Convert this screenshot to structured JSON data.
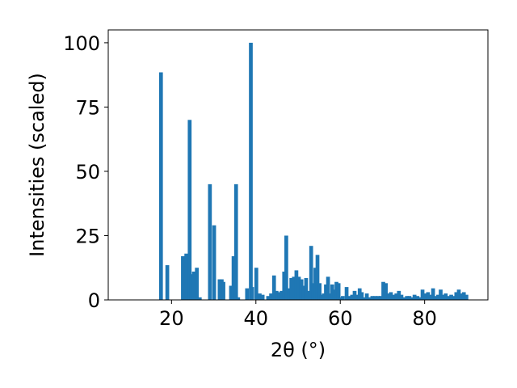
{
  "chart_data": {
    "type": "bar",
    "xlabel": "2θ (°)",
    "ylabel": "Intensities (scaled)",
    "xlim": [
      5,
      95
    ],
    "ylim": [
      0,
      105
    ],
    "xticks": [
      20,
      40,
      60,
      80
    ],
    "yticks": [
      0,
      25,
      50,
      75,
      100
    ],
    "bar_color": "#1f77b4",
    "grid": false,
    "legend": "none",
    "bar_width": 0.9,
    "x": [
      17.5,
      19.0,
      22.7,
      23.5,
      24.3,
      24.7,
      25.3,
      26.0,
      26.7,
      29.1,
      30.1,
      31.4,
      31.9,
      32.3,
      34.1,
      34.7,
      35.3,
      35.8,
      37.9,
      38.8,
      39.1,
      40.1,
      40.9,
      41.6,
      42.9,
      43.6,
      44.3,
      44.9,
      45.5,
      46.1,
      46.7,
      47.2,
      47.8,
      48.4,
      49.0,
      49.6,
      50.2,
      50.8,
      51.3,
      51.9,
      52.5,
      53.1,
      53.6,
      54.1,
      54.6,
      55.1,
      55.6,
      56.1,
      56.6,
      57.1,
      57.6,
      58.1,
      58.6,
      59.1,
      59.6,
      60.1,
      60.6,
      61.5,
      62.2,
      62.8,
      63.4,
      64.0,
      64.6,
      65.1,
      65.7,
      66.3,
      66.9,
      67.6,
      68.3,
      69.0,
      69.6,
      70.2,
      70.8,
      71.4,
      72.0,
      72.6,
      73.3,
      73.9,
      74.5,
      75.1,
      75.8,
      76.4,
      77.0,
      77.6,
      78.3,
      78.9,
      79.5,
      80.1,
      80.8,
      81.4,
      82.0,
      82.6,
      83.2,
      83.8,
      84.4,
      85.0,
      85.6,
      86.3,
      86.9,
      87.5,
      88.1,
      88.7,
      89.3,
      89.9
    ],
    "values": [
      88.5,
      13.5,
      17,
      18,
      70,
      10,
      11,
      12.5,
      1,
      45,
      29,
      8,
      8,
      7,
      5.5,
      17,
      45,
      1,
      4.5,
      100,
      5,
      12.5,
      2.5,
      2,
      1.5,
      2.5,
      9.5,
      3.5,
      3,
      3.5,
      11,
      25,
      4.5,
      8.5,
      9,
      11.5,
      9,
      8,
      5.5,
      8.5,
      3.5,
      21,
      6.5,
      12.5,
      17.5,
      6.5,
      2,
      2.5,
      6,
      9,
      2.5,
      6,
      4,
      7,
      6.5,
      1,
      1.5,
      5,
      1.5,
      2,
      3.5,
      2,
      4.5,
      3,
      1,
      2.5,
      1,
      1.5,
      1.5,
      1.5,
      1.5,
      7,
      6.5,
      2.5,
      3,
      2,
      2.5,
      3.5,
      2,
      1,
      1.5,
      1.5,
      1,
      2,
      1.5,
      1,
      4,
      2.5,
      3,
      2,
      4.5,
      1.5,
      2,
      4,
      2,
      2.5,
      1.5,
      2,
      1.5,
      3,
      4,
      2.5,
      3,
      2
    ]
  }
}
